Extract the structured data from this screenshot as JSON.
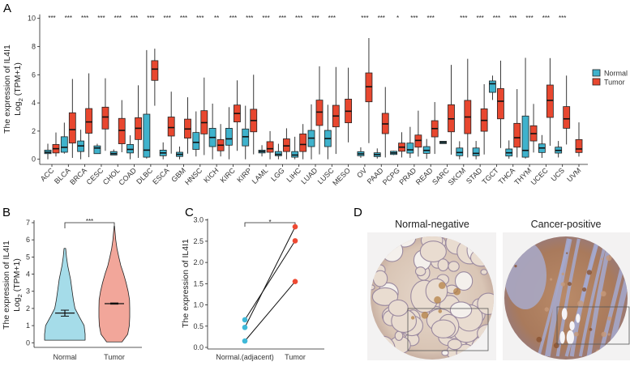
{
  "panels": {
    "a": "A",
    "b": "B",
    "c": "C",
    "d": "D"
  },
  "colors": {
    "normal": "#3FB2CC",
    "tumor": "#E8472F",
    "violin_normal": "#A5DCE9",
    "violin_tumor": "#F2A69A",
    "point_normal": "#3FB9D8",
    "point_tumor": "#EE4A33"
  },
  "chart_data": [
    {
      "panel": "A",
      "type": "box",
      "ylabel_line1": "The expression of IL4I1",
      "ylabel_line2_base": "Log",
      "ylabel_line2_sub": "2",
      "ylabel_line2_rest": " (TPM+1)",
      "ylim": [
        0,
        10
      ],
      "yticks": [
        "0",
        "2",
        "4",
        "6",
        "8",
        "10"
      ],
      "legend": {
        "position": "right",
        "entries": [
          "Normal",
          "Tumor"
        ]
      },
      "categories": [
        {
          "name": "ACC",
          "sig": "***",
          "normal": [
            0,
            0.4,
            0.5,
            0.65,
            1.1
          ],
          "tumor": [
            0.2,
            0.45,
            0.75,
            1.05,
            1.9
          ]
        },
        {
          "name": "BLCA",
          "sig": "***",
          "normal": [
            0.4,
            0.5,
            0.85,
            1.6,
            2.6
          ],
          "tumor": [
            0.1,
            1.15,
            2.1,
            3.3,
            5.7
          ]
        },
        {
          "name": "BRCA",
          "sig": "***",
          "normal": [
            0,
            0.55,
            0.95,
            1.3,
            2.1
          ],
          "tumor": [
            0.15,
            1.85,
            2.65,
            3.6,
            6.1
          ]
        },
        {
          "name": "CESC",
          "sig": "***",
          "normal": [
            0.4,
            0.4,
            0.8,
            0.95,
            1.1
          ],
          "tumor": [
            0.6,
            2.15,
            3.0,
            3.7,
            5.75
          ]
        },
        {
          "name": "CHOL",
          "sig": "***",
          "normal": [
            0.3,
            0.3,
            0.4,
            0.55,
            0.7
          ],
          "tumor": [
            0.5,
            1.1,
            2.05,
            2.9,
            4.2
          ]
        },
        {
          "name": "COAD",
          "sig": "***",
          "normal": [
            0,
            0.45,
            0.7,
            1.05,
            1.7
          ],
          "tumor": [
            0.1,
            1.4,
            2.2,
            2.95,
            5.25
          ]
        },
        {
          "name": "DLBC",
          "sig": "***",
          "normal": [
            0.05,
            0.15,
            0.65,
            3.2,
            7.75
          ],
          "tumor": [
            3.8,
            5.6,
            6.4,
            7.0,
            7.85
          ]
        },
        {
          "name": "ESCA",
          "sig": "***",
          "normal": [
            0,
            0.25,
            0.45,
            0.65,
            1.2
          ],
          "tumor": [
            0.4,
            1.65,
            2.25,
            3.0,
            4.8
          ]
        },
        {
          "name": "GBM",
          "sig": "***",
          "normal": [
            0,
            0.2,
            0.35,
            0.5,
            0.9
          ],
          "tumor": [
            0.4,
            1.5,
            2.15,
            2.85,
            4.4
          ]
        },
        {
          "name": "HNSC",
          "sig": "***",
          "normal": [
            0.2,
            0.7,
            1.2,
            1.9,
            3.4
          ],
          "tumor": [
            0.3,
            1.8,
            2.6,
            3.45,
            5.8
          ]
        },
        {
          "name": "KICH",
          "sig": "**",
          "normal": [
            0,
            0.9,
            1.55,
            2.2,
            3.95
          ],
          "tumor": [
            0.2,
            0.6,
            1.0,
            1.4,
            2.5
          ]
        },
        {
          "name": "KIRC",
          "sig": "***",
          "normal": [
            0,
            1.0,
            1.45,
            2.2,
            3.7
          ],
          "tumor": [
            0.6,
            2.65,
            3.25,
            3.85,
            5.6
          ]
        },
        {
          "name": "KIRP",
          "sig": "***",
          "normal": [
            0,
            0.95,
            1.6,
            2.15,
            3.8
          ],
          "tumor": [
            0.35,
            1.95,
            2.75,
            3.55,
            6.0
          ]
        },
        {
          "name": "LAML",
          "sig": "***",
          "normal": [
            0.2,
            0.45,
            0.55,
            0.65,
            1.0
          ],
          "tumor": [
            0,
            0.5,
            0.75,
            1.25,
            2.0
          ]
        },
        {
          "name": "LGG",
          "sig": "***",
          "normal": [
            0,
            0.25,
            0.35,
            0.55,
            1.1
          ],
          "tumor": [
            0,
            0.55,
            0.95,
            1.45,
            2.2
          ]
        },
        {
          "name": "LIHC",
          "sig": "***",
          "normal": [
            0,
            0.15,
            0.3,
            0.55,
            1.6
          ],
          "tumor": [
            0,
            0.55,
            1.05,
            1.8,
            2.5
          ]
        },
        {
          "name": "LUAD",
          "sig": "***",
          "normal": [
            0,
            0.9,
            1.5,
            2.05,
            3.9
          ],
          "tumor": [
            0.35,
            2.4,
            3.35,
            4.2,
            6.6
          ]
        },
        {
          "name": "LUSC",
          "sig": "***",
          "normal": [
            0,
            0.9,
            1.47,
            2.05,
            3.87
          ],
          "tumor": [
            0.38,
            2.3,
            3.07,
            3.83,
            6.55
          ]
        },
        {
          "name": "MESO",
          "sig": "",
          "normal": null,
          "tumor": [
            1.2,
            2.59,
            3.41,
            4.27,
            6.5
          ]
        },
        {
          "name": "OV",
          "sig": "***",
          "normal": [
            0.1,
            0.25,
            0.38,
            0.54,
            0.85
          ],
          "tumor": [
            1.15,
            4.08,
            5.15,
            6.13,
            8.6
          ]
        },
        {
          "name": "PAAD",
          "sig": "***",
          "normal": [
            0.05,
            0.19,
            0.33,
            0.46,
            0.77
          ],
          "tumor": [
            0.13,
            1.82,
            2.51,
            3.26,
            5.13
          ]
        },
        {
          "name": "PCPG",
          "sig": "*",
          "normal": [
            0.3,
            0.34,
            0.45,
            0.57,
            0.6
          ],
          "tumor": [
            0.13,
            0.57,
            0.86,
            1.15,
            1.92
          ]
        },
        {
          "name": "PRAD",
          "sig": "***",
          "normal": [
            0.1,
            0.44,
            0.67,
            1.15,
            2.3
          ],
          "tumor": [
            0.19,
            0.86,
            1.34,
            1.72,
            3.45
          ]
        },
        {
          "name": "READ",
          "sig": "***",
          "normal": [
            0.04,
            0.42,
            0.63,
            0.9,
            1.44
          ],
          "tumor": [
            0.38,
            1.59,
            2.18,
            2.74,
            4.06
          ]
        },
        {
          "name": "SARC",
          "sig": "",
          "normal": [
            1.11,
            1.11,
            1.2,
            1.28,
            1.28
          ],
          "tumor": [
            0.33,
            1.95,
            2.87,
            3.87,
            6.7
          ]
        },
        {
          "name": "SKCM",
          "sig": "***",
          "normal": [
            0,
            0.25,
            0.48,
            0.8,
            1.28
          ],
          "tumor": [
            0.13,
            1.82,
            3.0,
            4.18,
            7.13
          ]
        },
        {
          "name": "STAD",
          "sig": "***",
          "normal": [
            0,
            0.25,
            0.42,
            0.8,
            1.3
          ],
          "tumor": [
            0.34,
            1.99,
            2.76,
            3.58,
            5.33
          ]
        },
        {
          "name": "TGCT",
          "sig": "***",
          "normal": [
            4.21,
            4.75,
            5.36,
            5.56,
            5.94
          ],
          "tumor": [
            0.8,
            2.87,
            4.12,
            5.02,
            7.0
          ]
        },
        {
          "name": "THCA",
          "sig": "***",
          "normal": [
            0.04,
            0.23,
            0.46,
            0.73,
            1.34
          ],
          "tumor": [
            0.13,
            0.86,
            1.53,
            2.55,
            4.98
          ]
        },
        {
          "name": "THYM",
          "sig": "***",
          "normal": [
            0.05,
            0.15,
            0.63,
            3.07,
            7.2
          ],
          "tumor": [
            0.48,
            1.3,
            1.82,
            2.38,
            3.93
          ]
        },
        {
          "name": "UCEC",
          "sig": "***",
          "normal": [
            0.1,
            0.48,
            0.8,
            1.09,
            1.72
          ],
          "tumor": [
            0.96,
            2.97,
            4.18,
            5.27,
            7.18
          ]
        },
        {
          "name": "UCS",
          "sig": "***",
          "normal": [
            0.13,
            0.44,
            0.63,
            0.86,
            1.3
          ],
          "tumor": [
            1.05,
            2.2,
            2.87,
            3.74,
            5.94
          ]
        },
        {
          "name": "UVM",
          "sig": "",
          "normal": null,
          "tumor": [
            0.19,
            0.48,
            0.73,
            1.4,
            2.62
          ]
        }
      ]
    },
    {
      "panel": "B",
      "type": "violin",
      "ylabel_line1": "The expression of IL4I1",
      "ylabel_line2_base": "Log",
      "ylabel_line2_sub": "2",
      "ylabel_line2_rest": " (TPM+1)",
      "ylim": [
        0,
        7
      ],
      "yticks": [
        "0",
        "1",
        "2",
        "3",
        "4",
        "5",
        "6",
        "7"
      ],
      "categories": [
        "Normal",
        "Tumor"
      ],
      "significance": "***",
      "series": [
        {
          "group": "Normal",
          "range": [
            0.15,
            5.5
          ],
          "mean": 1.73,
          "error": [
            1.55,
            1.9
          ],
          "density": [
            [
              0.15,
              1.0
            ],
            [
              0.5,
              1.0
            ],
            [
              1.0,
              0.95
            ],
            [
              1.5,
              0.72
            ],
            [
              2.0,
              0.5
            ],
            [
              2.5,
              0.42
            ],
            [
              3.0,
              0.36
            ],
            [
              3.7,
              0.28
            ],
            [
              4.5,
              0.14
            ],
            [
              5.0,
              0.08
            ],
            [
              5.5,
              0.04
            ]
          ]
        },
        {
          "group": "Tumor",
          "range": [
            0.05,
            6.8
          ],
          "mean": 2.28,
          "error": [
            2.25,
            2.32
          ],
          "density": [
            [
              0.05,
              0.38
            ],
            [
              0.5,
              0.66
            ],
            [
              1.0,
              0.74
            ],
            [
              1.5,
              0.76
            ],
            [
              2.0,
              0.76
            ],
            [
              2.5,
              0.75
            ],
            [
              3.0,
              0.68
            ],
            [
              3.5,
              0.58
            ],
            [
              4.0,
              0.46
            ],
            [
              4.5,
              0.32
            ],
            [
              5.0,
              0.22
            ],
            [
              5.5,
              0.13
            ],
            [
              6.0,
              0.07
            ],
            [
              6.8,
              0.01
            ]
          ]
        }
      ]
    },
    {
      "panel": "C",
      "type": "paired-scatter",
      "ylabel": "The expression of IL4I1",
      "ylim": [
        0,
        3
      ],
      "yticks": [
        "0.0",
        "0.5",
        "1.0",
        "1.5",
        "2.0",
        "2.5",
        "3.0"
      ],
      "categories": [
        "Normal.(adjacent)",
        "Tumor"
      ],
      "significance": "*",
      "pairs": [
        [
          0.47,
          2.84
        ],
        [
          0.65,
          2.51
        ],
        [
          0.15,
          1.55
        ]
      ]
    }
  ],
  "panel_d": {
    "images": [
      {
        "title": "Normal-negative",
        "stain": "negative"
      },
      {
        "title": "Cancer-positive",
        "stain": "positive"
      }
    ]
  }
}
